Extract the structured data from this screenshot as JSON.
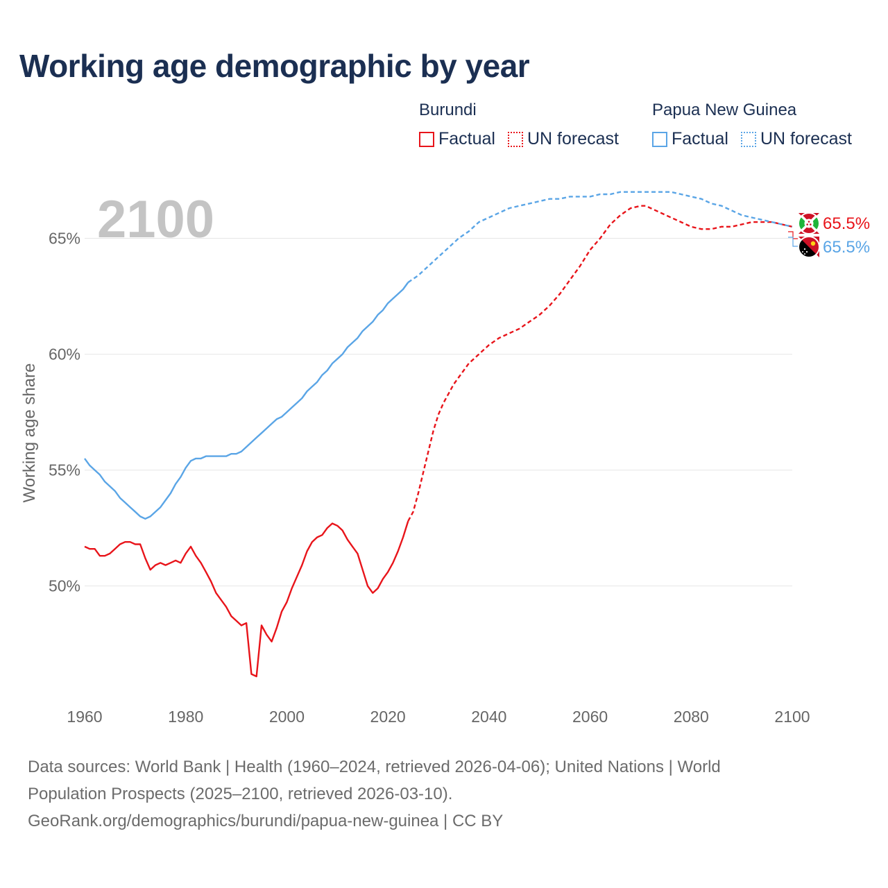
{
  "title": "Working age demographic by year",
  "legend": [
    {
      "country": "Burundi",
      "color": "#e8141a",
      "items": [
        {
          "label": "Factual",
          "style": "solid"
        },
        {
          "label": "UN forecast",
          "style": "dotted"
        }
      ]
    },
    {
      "country": "Papua New Guinea",
      "color": "#5aa5e6",
      "items": [
        {
          "label": "Factual",
          "style": "solid"
        },
        {
          "label": "UN forecast",
          "style": "dotted"
        }
      ]
    }
  ],
  "year_label": "2100",
  "end_labels": [
    {
      "country": "Burundi",
      "text": "65.5%",
      "flag": "burundi-flag-icon"
    },
    {
      "country": "Papua New Guinea",
      "text": "65.5%",
      "flag": "papua-new-guinea-flag-icon"
    }
  ],
  "chart_data": {
    "type": "line",
    "title": "Working age demographic by year",
    "xlabel": "",
    "ylabel": "Working age share",
    "xlim": [
      1960,
      2100
    ],
    "ylim": [
      45.5,
      67.5
    ],
    "xticks": [
      1960,
      1980,
      2000,
      2020,
      2040,
      2060,
      2080,
      2100
    ],
    "yticks": [
      50,
      55,
      60,
      65
    ],
    "ytick_labels": [
      "50%",
      "55%",
      "60%",
      "65%"
    ],
    "grid": true,
    "forecast_start_year": 2024,
    "series": [
      {
        "name": "Burundi",
        "color": "#e8141a",
        "x": [
          1960,
          1961,
          1962,
          1963,
          1964,
          1965,
          1966,
          1967,
          1968,
          1969,
          1970,
          1971,
          1972,
          1973,
          1974,
          1975,
          1976,
          1977,
          1978,
          1979,
          1980,
          1981,
          1982,
          1983,
          1984,
          1985,
          1986,
          1987,
          1988,
          1989,
          1990,
          1991,
          1992,
          1993,
          1994,
          1995,
          1996,
          1997,
          1998,
          1999,
          2000,
          2001,
          2002,
          2003,
          2004,
          2005,
          2006,
          2007,
          2008,
          2009,
          2010,
          2011,
          2012,
          2013,
          2014,
          2015,
          2016,
          2017,
          2018,
          2019,
          2020,
          2021,
          2022,
          2023,
          2024,
          2025,
          2026,
          2027,
          2028,
          2029,
          2030,
          2031,
          2032,
          2033,
          2034,
          2035,
          2036,
          2037,
          2038,
          2039,
          2040,
          2042,
          2044,
          2046,
          2048,
          2050,
          2052,
          2054,
          2056,
          2058,
          2060,
          2062,
          2064,
          2066,
          2068,
          2070,
          2071,
          2072,
          2074,
          2076,
          2078,
          2080,
          2082,
          2084,
          2086,
          2088,
          2090,
          2092,
          2094,
          2096,
          2098,
          2100
        ],
        "values": [
          51.7,
          51.6,
          51.6,
          51.3,
          51.3,
          51.4,
          51.6,
          51.8,
          51.9,
          51.9,
          51.8,
          51.8,
          51.2,
          50.7,
          50.9,
          51.0,
          50.9,
          51.0,
          51.1,
          51.0,
          51.4,
          51.7,
          51.3,
          51.0,
          50.6,
          50.2,
          49.7,
          49.4,
          49.1,
          48.7,
          48.5,
          48.3,
          48.4,
          46.2,
          46.1,
          48.3,
          47.9,
          47.6,
          48.2,
          48.9,
          49.3,
          49.9,
          50.4,
          50.9,
          51.5,
          51.9,
          52.1,
          52.2,
          52.5,
          52.7,
          52.6,
          52.4,
          52.0,
          51.7,
          51.4,
          50.7,
          50.0,
          49.7,
          49.9,
          50.3,
          50.6,
          51.0,
          51.5,
          52.1,
          52.8,
          53.2,
          54.0,
          54.9,
          55.8,
          56.7,
          57.4,
          57.9,
          58.3,
          58.7,
          59.0,
          59.3,
          59.6,
          59.8,
          60.0,
          60.2,
          60.4,
          60.7,
          60.9,
          61.1,
          61.4,
          61.7,
          62.1,
          62.6,
          63.2,
          63.8,
          64.5,
          65.0,
          65.6,
          66.0,
          66.3,
          66.4,
          66.4,
          66.3,
          66.1,
          65.9,
          65.7,
          65.5,
          65.4,
          65.4,
          65.5,
          65.5,
          65.6,
          65.7,
          65.7,
          65.7,
          65.6,
          65.5
        ]
      },
      {
        "name": "Papua New Guinea",
        "color": "#5aa5e6",
        "x": [
          1960,
          1961,
          1962,
          1963,
          1964,
          1965,
          1966,
          1967,
          1968,
          1969,
          1970,
          1971,
          1972,
          1973,
          1974,
          1975,
          1976,
          1977,
          1978,
          1979,
          1980,
          1981,
          1982,
          1983,
          1984,
          1985,
          1986,
          1987,
          1988,
          1989,
          1990,
          1991,
          1992,
          1993,
          1994,
          1995,
          1996,
          1997,
          1998,
          1999,
          2000,
          2001,
          2002,
          2003,
          2004,
          2005,
          2006,
          2007,
          2008,
          2009,
          2010,
          2011,
          2012,
          2013,
          2014,
          2015,
          2016,
          2017,
          2018,
          2019,
          2020,
          2021,
          2022,
          2023,
          2024,
          2026,
          2028,
          2030,
          2032,
          2034,
          2036,
          2038,
          2040,
          2042,
          2044,
          2046,
          2048,
          2050,
          2052,
          2054,
          2056,
          2058,
          2060,
          2062,
          2064,
          2066,
          2068,
          2070,
          2072,
          2074,
          2076,
          2078,
          2080,
          2082,
          2084,
          2086,
          2088,
          2090,
          2092,
          2094,
          2096,
          2098,
          2100
        ],
        "values": [
          55.5,
          55.2,
          55.0,
          54.8,
          54.5,
          54.3,
          54.1,
          53.8,
          53.6,
          53.4,
          53.2,
          53.0,
          52.9,
          53.0,
          53.2,
          53.4,
          53.7,
          54.0,
          54.4,
          54.7,
          55.1,
          55.4,
          55.5,
          55.5,
          55.6,
          55.6,
          55.6,
          55.6,
          55.6,
          55.7,
          55.7,
          55.8,
          56.0,
          56.2,
          56.4,
          56.6,
          56.8,
          57.0,
          57.2,
          57.3,
          57.5,
          57.7,
          57.9,
          58.1,
          58.4,
          58.6,
          58.8,
          59.1,
          59.3,
          59.6,
          59.8,
          60.0,
          60.3,
          60.5,
          60.7,
          61.0,
          61.2,
          61.4,
          61.7,
          61.9,
          62.2,
          62.4,
          62.6,
          62.8,
          63.1,
          63.4,
          63.8,
          64.2,
          64.6,
          65.0,
          65.3,
          65.7,
          65.9,
          66.1,
          66.3,
          66.4,
          66.5,
          66.6,
          66.7,
          66.7,
          66.8,
          66.8,
          66.8,
          66.9,
          66.9,
          67.0,
          67.0,
          67.0,
          67.0,
          67.0,
          67.0,
          66.9,
          66.8,
          66.7,
          66.5,
          66.4,
          66.2,
          66.0,
          65.9,
          65.8,
          65.7,
          65.6,
          65.5
        ]
      }
    ]
  },
  "source": {
    "line1": "Data sources: World Bank | Health (1960–2024, retrieved 2026-04-06); United Nations | World",
    "line2": "Population Prospects (2025–2100, retrieved 2026-03-10).",
    "line3": "GeoRank.org/demographics/burundi/papua-new-guinea | CC BY"
  }
}
